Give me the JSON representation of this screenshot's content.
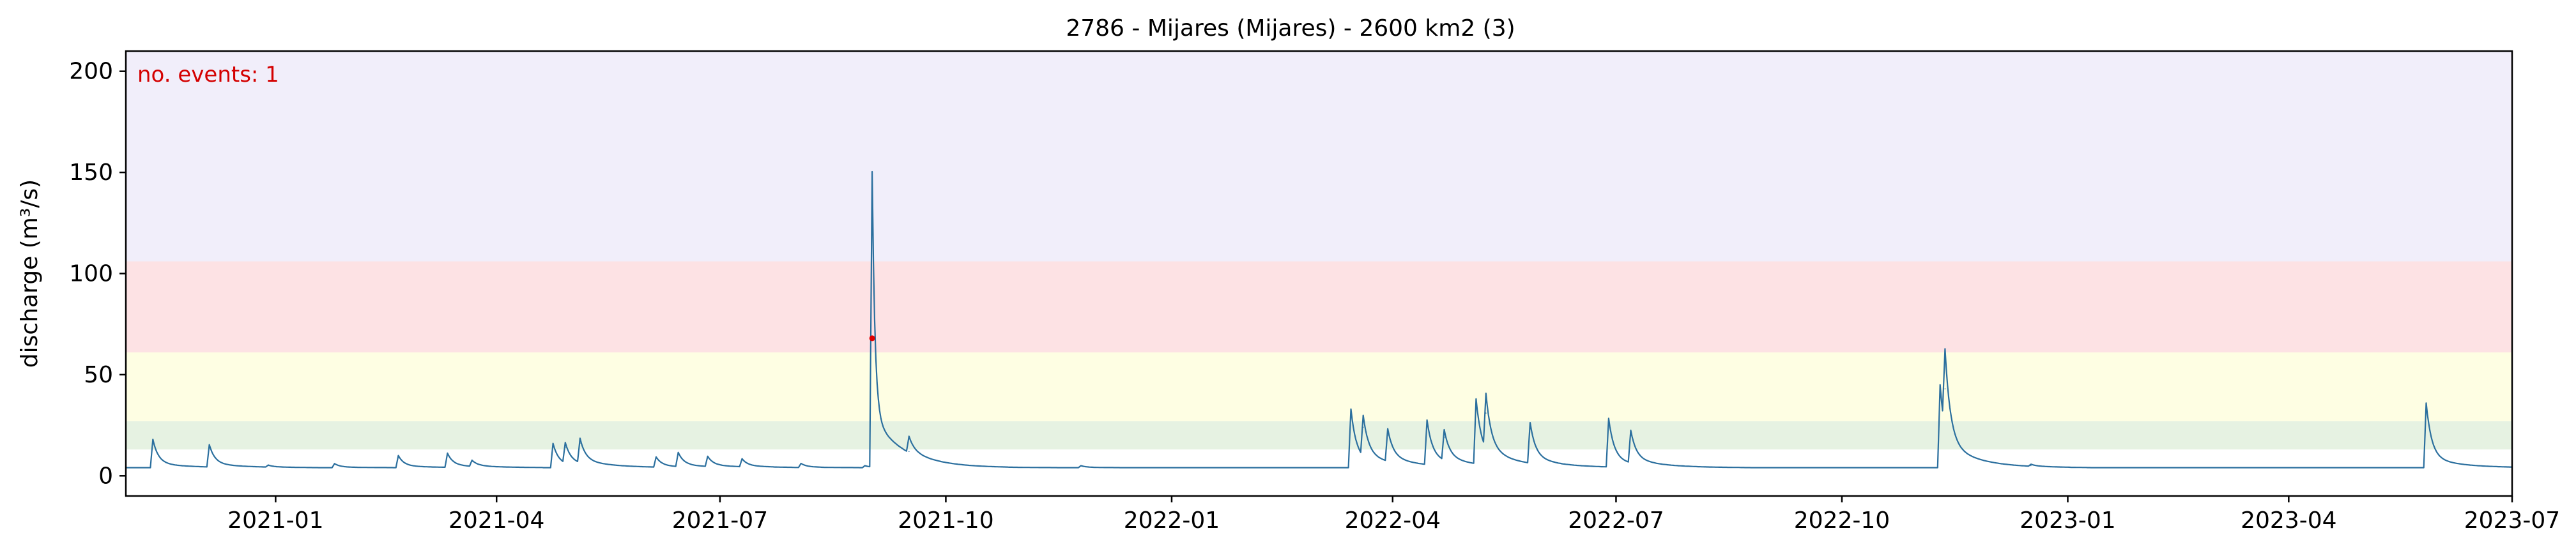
{
  "chart_data": {
    "type": "line",
    "title": "2786 - Mijares (Mijares) - 2600 km2 (3)",
    "xlabel": "",
    "ylabel": "discharge (m³/s)",
    "xlim": [
      "2020-11-01",
      "2023-07-01"
    ],
    "ylim": [
      -10,
      210
    ],
    "grid": false,
    "x_tick_labels": [
      "2021-01",
      "2021-04",
      "2021-07",
      "2021-10",
      "2022-01",
      "2022-04",
      "2022-07",
      "2022-10",
      "2023-01",
      "2023-04",
      "2023-07"
    ],
    "y_ticks": [
      0,
      50,
      100,
      150,
      200
    ],
    "threshold_bands": [
      {
        "from": 13,
        "to": 27,
        "color": "#e6f2e2"
      },
      {
        "from": 27,
        "to": 61,
        "color": "#fefee3"
      },
      {
        "from": 61,
        "to": 106,
        "color": "#fde2e4"
      },
      {
        "from": 106,
        "to": 210,
        "color": "#f1eefa"
      }
    ],
    "series": [
      {
        "color": "#2b6f9e",
        "baseline": 4,
        "peaks": [
          {
            "date": "2020-11-12",
            "value": 18
          },
          {
            "date": "2020-12-05",
            "value": 15
          },
          {
            "date": "2020-12-29",
            "value": 5
          },
          {
            "date": "2021-01-25",
            "value": 6
          },
          {
            "date": "2021-02-20",
            "value": 10
          },
          {
            "date": "2021-03-12",
            "value": 11
          },
          {
            "date": "2021-03-22",
            "value": 7
          },
          {
            "date": "2021-04-24",
            "value": 16
          },
          {
            "date": "2021-04-29",
            "value": 14
          },
          {
            "date": "2021-05-05",
            "value": 16
          },
          {
            "date": "2021-06-05",
            "value": 9
          },
          {
            "date": "2021-06-14",
            "value": 11
          },
          {
            "date": "2021-06-26",
            "value": 9
          },
          {
            "date": "2021-07-10",
            "value": 8
          },
          {
            "date": "2021-08-03",
            "value": 6
          },
          {
            "date": "2021-08-29",
            "value": 5
          },
          {
            "date": "2021-09-01",
            "value": 150
          },
          {
            "date": "2021-09-16",
            "value": 12
          },
          {
            "date": "2021-11-25",
            "value": 5
          },
          {
            "date": "2022-03-15",
            "value": 33
          },
          {
            "date": "2022-03-20",
            "value": 24
          },
          {
            "date": "2022-03-30",
            "value": 20
          },
          {
            "date": "2022-04-15",
            "value": 26
          },
          {
            "date": "2022-04-22",
            "value": 19
          },
          {
            "date": "2022-05-05",
            "value": 36
          },
          {
            "date": "2022-05-09",
            "value": 31
          },
          {
            "date": "2022-05-27",
            "value": 24
          },
          {
            "date": "2022-06-28",
            "value": 28
          },
          {
            "date": "2022-07-07",
            "value": 20
          },
          {
            "date": "2022-11-10",
            "value": 45
          },
          {
            "date": "2022-11-12",
            "value": 43
          },
          {
            "date": "2022-12-17",
            "value": 5
          },
          {
            "date": "2023-05-27",
            "value": 36
          }
        ]
      }
    ],
    "events": [
      {
        "date": "2021-09-01",
        "value": 68,
        "color": "#e00000"
      }
    ],
    "annotation": {
      "text": "no. events: 1",
      "color": "#d40000",
      "position": "top-left"
    }
  }
}
